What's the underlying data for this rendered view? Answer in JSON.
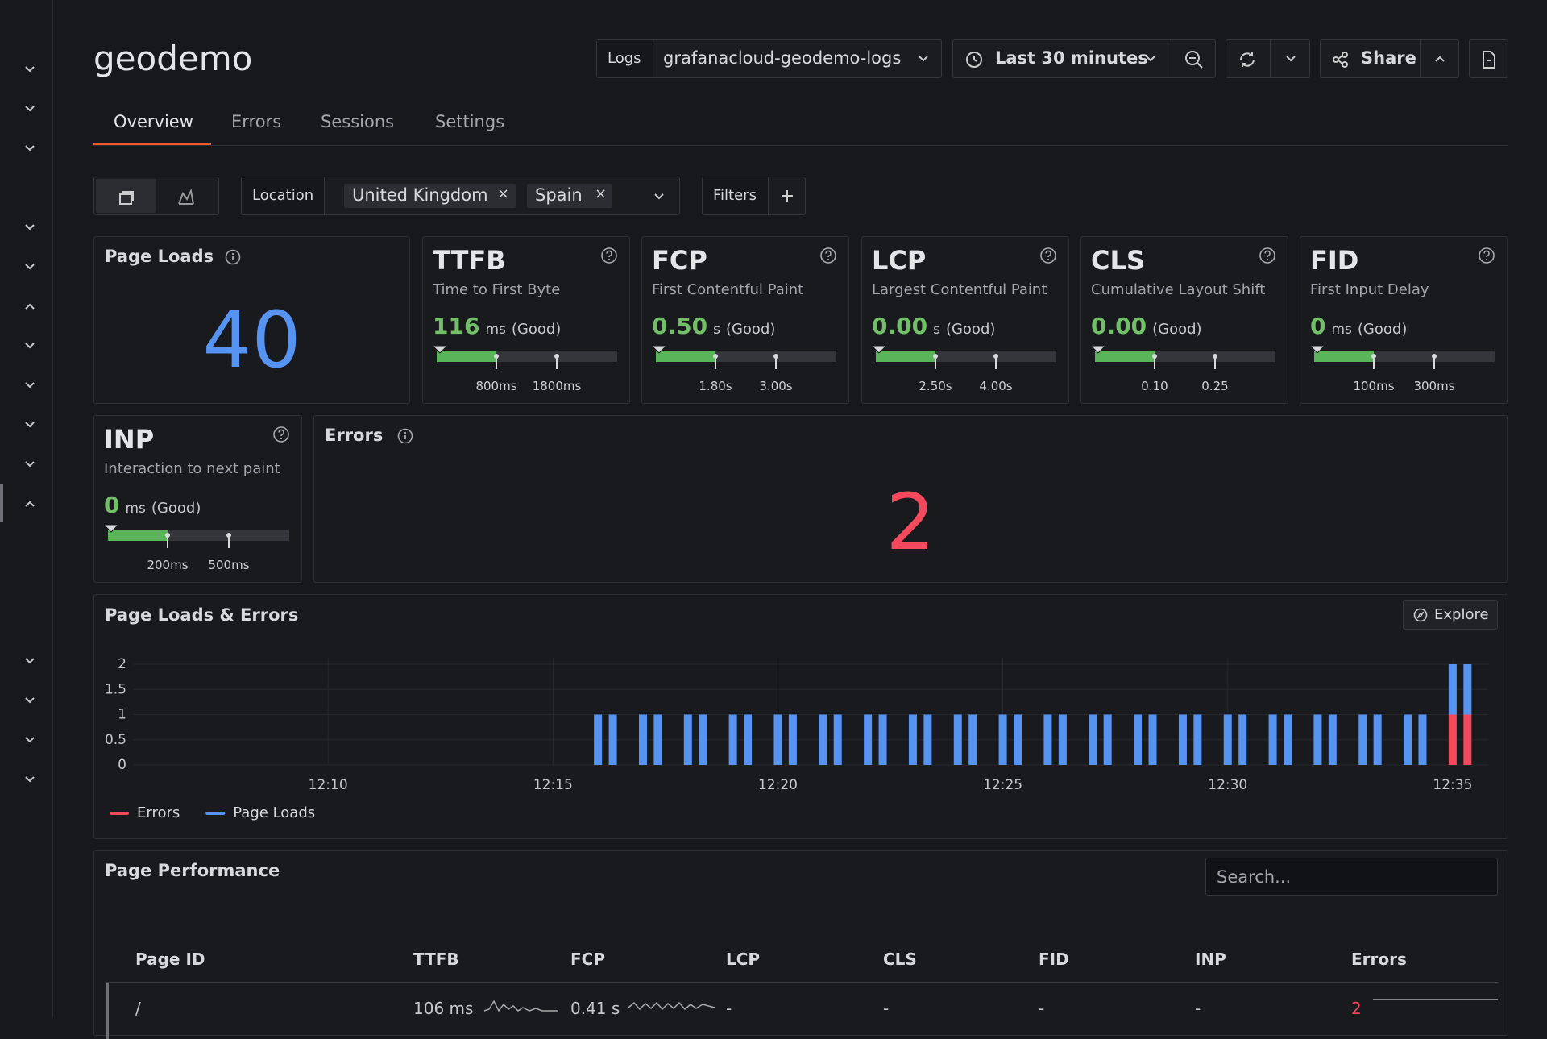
{
  "header": {
    "title": "geodemo",
    "logs_label": "Logs",
    "datasource": "grafanacloud-geodemo-logs",
    "time_range": "Last 30 minutes",
    "share": "Share"
  },
  "tabs": [
    "Overview",
    "Errors",
    "Sessions",
    "Settings"
  ],
  "filters": {
    "location_label": "Location",
    "chips": [
      "United Kingdom",
      "Spain"
    ],
    "filters_label": "Filters"
  },
  "stats": {
    "page_loads": {
      "title": "Page Loads",
      "value": "40"
    },
    "errors": {
      "title": "Errors",
      "value": "2"
    }
  },
  "vitals": [
    {
      "title": "TTFB",
      "subtitle": "Time to First Byte",
      "value": "116",
      "unit": "ms",
      "rating": "(Good)",
      "thresholds": [
        "800ms",
        "1800ms"
      ]
    },
    {
      "title": "FCP",
      "subtitle": "First Contentful Paint",
      "value": "0.50",
      "unit": "s",
      "rating": "(Good)",
      "thresholds": [
        "1.80s",
        "3.00s"
      ]
    },
    {
      "title": "LCP",
      "subtitle": "Largest Contentful Paint",
      "value": "0.00",
      "unit": "s",
      "rating": "(Good)",
      "thresholds": [
        "2.50s",
        "4.00s"
      ]
    },
    {
      "title": "CLS",
      "subtitle": "Cumulative Layout Shift",
      "value": "0.00",
      "rating": "(Good)",
      "thresholds": [
        "0.10",
        "0.25"
      ]
    },
    {
      "title": "FID",
      "subtitle": "First Input Delay",
      "value": "0",
      "unit": "ms",
      "rating": "(Good)",
      "thresholds": [
        "100ms",
        "300ms"
      ]
    },
    {
      "title": "INP",
      "subtitle": "Interaction to next paint",
      "value": "0",
      "unit": "ms",
      "rating": "(Good)",
      "thresholds": [
        "200ms",
        "500ms"
      ]
    }
  ],
  "chart_panel": {
    "explore": "Explore"
  },
  "chart_data": {
    "type": "bar",
    "stacked": true,
    "title": "Page Loads & Errors",
    "x": [
      16,
      16.33,
      17,
      17.33,
      18,
      18.33,
      19,
      19.33,
      20,
      20.33,
      21,
      21.33,
      22,
      22.33,
      23,
      23.33,
      24,
      24.33,
      25,
      25.33,
      26,
      26.33,
      27,
      27.33,
      28,
      28.33,
      29,
      29.33,
      30,
      30.33,
      31,
      31.33,
      32,
      32.33,
      33,
      33.33,
      34,
      34.33,
      35,
      35.33
    ],
    "series": [
      {
        "name": "Errors",
        "color": "#f2495c",
        "values": [
          0,
          0,
          0,
          0,
          0,
          0,
          0,
          0,
          0,
          0,
          0,
          0,
          0,
          0,
          0,
          0,
          0,
          0,
          0,
          0,
          0,
          0,
          0,
          0,
          0,
          0,
          0,
          0,
          0,
          0,
          0,
          0,
          0,
          0,
          0,
          0,
          0,
          0,
          1,
          1
        ]
      },
      {
        "name": "Page Loads",
        "color": "#5794f2",
        "values": [
          1,
          1,
          1,
          1,
          1,
          1,
          1,
          1,
          1,
          1,
          1,
          1,
          1,
          1,
          1,
          1,
          1,
          1,
          1,
          1,
          1,
          1,
          1,
          1,
          1,
          1,
          1,
          1,
          1,
          1,
          1,
          1,
          1,
          1,
          1,
          1,
          1,
          1,
          1,
          1
        ]
      }
    ],
    "xlim": [
      5.68,
      35.79
    ],
    "xticks": [
      {
        "value": 10,
        "label": "12:10"
      },
      {
        "value": 15,
        "label": "12:15"
      },
      {
        "value": 20,
        "label": "12:20"
      },
      {
        "value": 25,
        "label": "12:25"
      },
      {
        "value": 30,
        "label": "12:30"
      },
      {
        "value": 35,
        "label": "12:35"
      }
    ],
    "ylim": [
      0,
      2
    ],
    "yticks": [
      0,
      0.5,
      1,
      1.5,
      2
    ],
    "grid": true,
    "legend": "bottom-left"
  },
  "table": {
    "title": "Page Performance",
    "search_placeholder": "Search...",
    "columns": [
      "Page ID",
      "TTFB",
      "FCP",
      "LCP",
      "CLS",
      "FID",
      "INP",
      "Errors"
    ],
    "rows": [
      [
        "/",
        "106 ms",
        "0.41 s",
        "-",
        "-",
        "-",
        "-",
        "2"
      ]
    ]
  }
}
